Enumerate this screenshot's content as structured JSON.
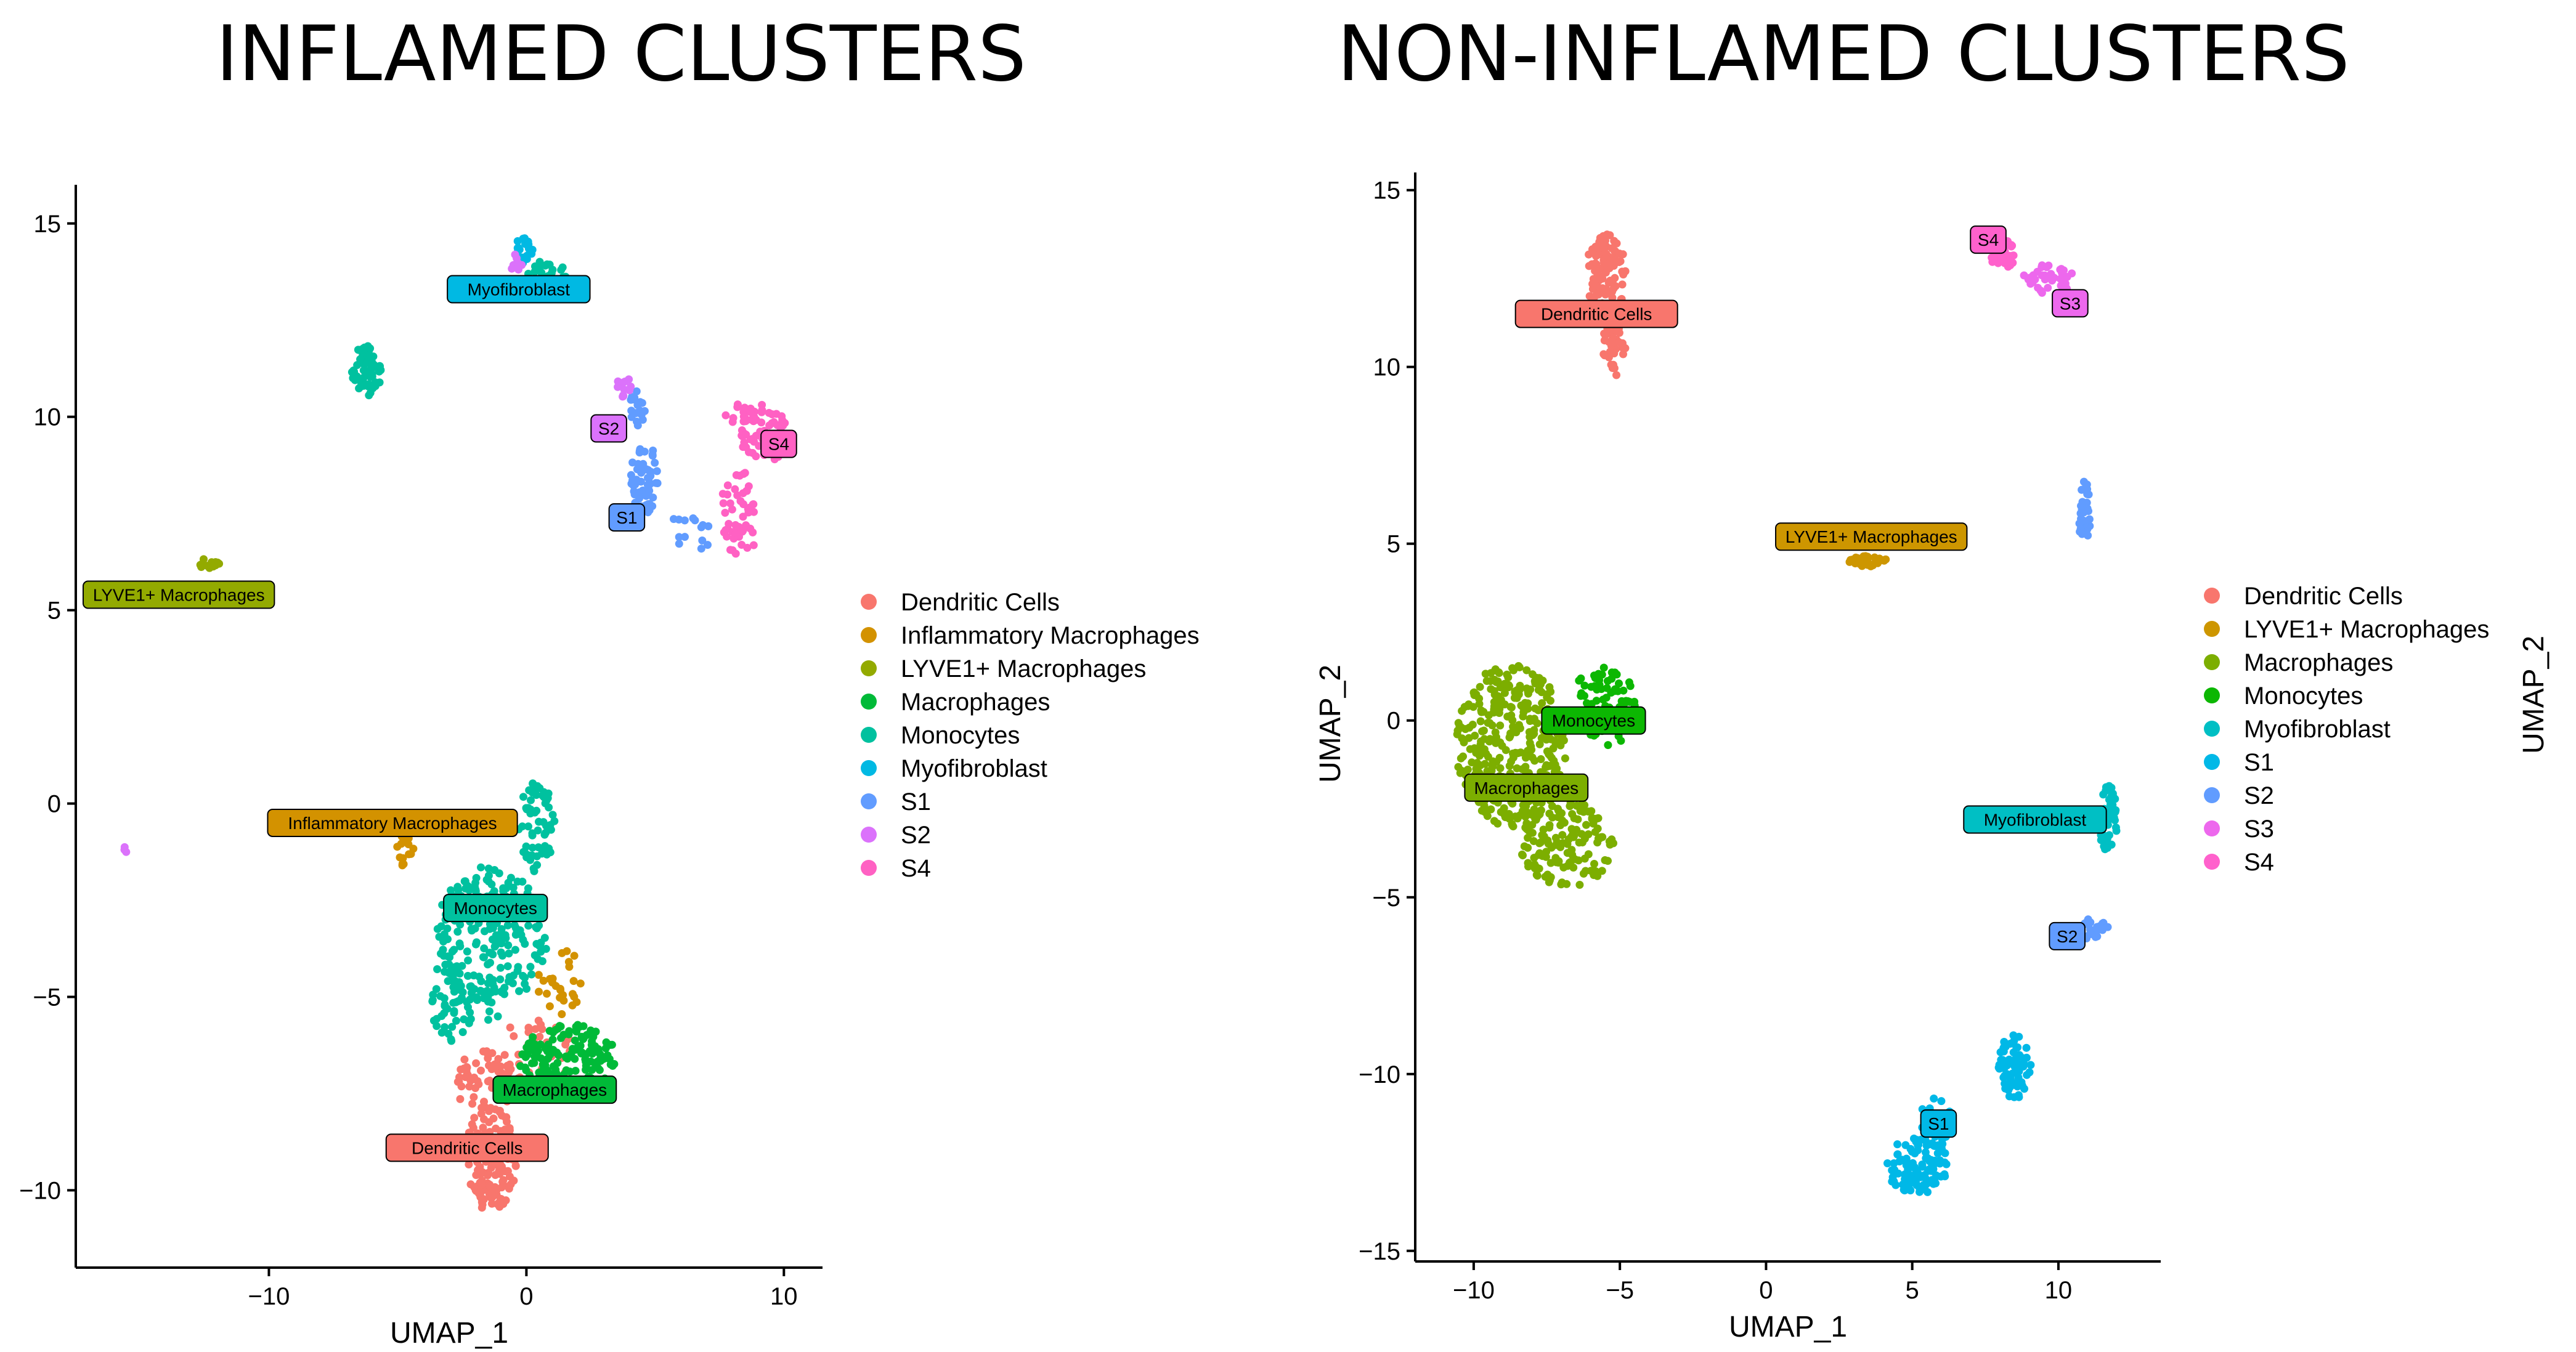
{
  "titles": {
    "left": "INFLAMED CLUSTERS",
    "right": "NON-INFLAMED CLUSTERS"
  },
  "chart_data": [
    {
      "type": "scatter",
      "title": "INFLAMED CLUSTERS",
      "xlabel": "UMAP_1",
      "ylabel": "",
      "xlim": [
        -17.5,
        11.5
      ],
      "ylim": [
        -12,
        16
      ],
      "xticks": [
        -10,
        0,
        10
      ],
      "yticks": [
        -10,
        -5,
        0,
        5,
        10,
        15
      ],
      "legend_position": "right",
      "legend": [
        {
          "name": "Dendritic Cells",
          "color": "#F8766D"
        },
        {
          "name": "Inflammatory Macrophages",
          "color": "#D39200"
        },
        {
          "name": "LYVE1+ Macrophages",
          "color": "#93AA00"
        },
        {
          "name": "Macrophages",
          "color": "#00BA38"
        },
        {
          "name": "Monocytes",
          "color": "#00C19F"
        },
        {
          "name": "Myofibroblast",
          "color": "#00B9E3"
        },
        {
          "name": "S1",
          "color": "#619CFF"
        },
        {
          "name": "S2",
          "color": "#DB72FB"
        },
        {
          "name": "S4",
          "color": "#FF61C3"
        }
      ],
      "cluster_labels": [
        {
          "text": "Myofibroblast",
          "x": -0.3,
          "y": 13.3,
          "color": "#00B9E3"
        },
        {
          "text": "S2",
          "x": 3.2,
          "y": 9.7,
          "color": "#DB72FB"
        },
        {
          "text": "S4",
          "x": 9.8,
          "y": 9.3,
          "color": "#FF61C3"
        },
        {
          "text": "S1",
          "x": 3.9,
          "y": 7.4,
          "color": "#619CFF"
        },
        {
          "text": "LYVE1+ Macrophages",
          "x": -13.5,
          "y": 5.4,
          "color": "#93AA00"
        },
        {
          "text": "Inflammatory Macrophages",
          "x": -5.2,
          "y": -0.5,
          "color": "#D39200"
        },
        {
          "text": "Monocytes",
          "x": -1.2,
          "y": -2.7,
          "color": "#00C19F"
        },
        {
          "text": "Macrophages",
          "x": 1.1,
          "y": -7.4,
          "color": "#00BA38"
        },
        {
          "text": "Dendritic Cells",
          "x": -2.3,
          "y": -8.9,
          "color": "#F8766D"
        }
      ],
      "series": [
        {
          "name": "Dendritic Cells",
          "color": "#F8766D",
          "blobs": [
            {
              "cx": -1.4,
              "cy": -9.2,
              "rx": 1.0,
              "ry": 1.4,
              "n": 150
            },
            {
              "cx": -1.6,
              "cy": -7.2,
              "rx": 1.2,
              "ry": 0.8,
              "n": 60
            },
            {
              "cx": 0.3,
              "cy": -6.6,
              "rx": 1.6,
              "ry": 1.0,
              "n": 40
            }
          ]
        },
        {
          "name": "Inflammatory Macrophages",
          "color": "#D39200",
          "blobs": [
            {
              "cx": -4.8,
              "cy": -1.2,
              "rx": 0.5,
              "ry": 0.4,
              "n": 14
            },
            {
              "cx": 1.3,
              "cy": -4.6,
              "rx": 0.9,
              "ry": 0.9,
              "n": 26
            }
          ]
        },
        {
          "name": "LYVE1+ Macrophages",
          "color": "#93AA00",
          "blobs": [
            {
              "cx": -12.3,
              "cy": 6.2,
              "rx": 0.4,
              "ry": 0.15,
              "n": 16
            }
          ]
        },
        {
          "name": "Macrophages",
          "color": "#00BA38",
          "blobs": [
            {
              "cx": 1.6,
              "cy": -6.6,
              "rx": 1.9,
              "ry": 0.9,
              "n": 150
            }
          ]
        },
        {
          "name": "Monocytes",
          "color": "#00C19F",
          "blobs": [
            {
              "cx": -1.4,
              "cy": -3.6,
              "rx": 2.2,
              "ry": 2.0,
              "n": 220
            },
            {
              "cx": 0.4,
              "cy": -0.6,
              "rx": 0.7,
              "ry": 1.2,
              "n": 60
            },
            {
              "cx": -2.8,
              "cy": -5.2,
              "rx": 0.9,
              "ry": 1.0,
              "n": 50
            },
            {
              "cx": -6.2,
              "cy": 11.2,
              "rx": 0.6,
              "ry": 0.65,
              "n": 70
            },
            {
              "cx": 0.8,
              "cy": 13.7,
              "rx": 0.8,
              "ry": 0.35,
              "n": 22
            }
          ]
        },
        {
          "name": "Myofibroblast",
          "color": "#00B9E3",
          "blobs": [
            {
              "cx": -0.1,
              "cy": 14.3,
              "rx": 0.35,
              "ry": 0.35,
              "n": 22
            }
          ]
        },
        {
          "name": "S1",
          "color": "#619CFF",
          "blobs": [
            {
              "cx": 4.6,
              "cy": 8.4,
              "rx": 0.55,
              "ry": 0.9,
              "n": 60
            },
            {
              "cx": 4.3,
              "cy": 10.2,
              "rx": 0.35,
              "ry": 0.5,
              "n": 18
            },
            {
              "cx": 6.3,
              "cy": 7.0,
              "rx": 1.0,
              "ry": 0.5,
              "n": 14
            }
          ]
        },
        {
          "name": "S2",
          "color": "#DB72FB",
          "blobs": [
            {
              "cx": 3.8,
              "cy": 10.8,
              "rx": 0.3,
              "ry": 0.3,
              "n": 12
            },
            {
              "cx": -0.4,
              "cy": 14.0,
              "rx": 0.25,
              "ry": 0.3,
              "n": 8
            },
            {
              "cx": -15.6,
              "cy": -1.2,
              "rx": 0.08,
              "ry": 0.12,
              "n": 3
            }
          ]
        },
        {
          "name": "S4",
          "color": "#FF61C3",
          "blobs": [
            {
              "cx": 8.3,
              "cy": 7.5,
              "rx": 0.8,
              "ry": 1.1,
              "n": 50
            },
            {
              "cx": 9.2,
              "cy": 9.6,
              "rx": 0.9,
              "ry": 0.9,
              "n": 60
            },
            {
              "cx": 8.2,
              "cy": 10.1,
              "rx": 0.5,
              "ry": 0.3,
              "n": 10
            }
          ]
        }
      ]
    },
    {
      "type": "scatter",
      "title": "NON-INFLAMED CLUSTERS",
      "xlabel": "UMAP_1",
      "ylabel": "UMAP_2",
      "xlim": [
        -12,
        13.5
      ],
      "ylim": [
        -15.3,
        15.5
      ],
      "xticks": [
        -10,
        -5,
        0,
        5,
        10
      ],
      "yticks": [
        -15,
        -10,
        -5,
        0,
        5,
        10,
        15
      ],
      "legend_position": "right",
      "legend": [
        {
          "name": "Dendritic Cells",
          "color": "#F8766D"
        },
        {
          "name": "LYVE1+ Macrophages",
          "color": "#CD9600"
        },
        {
          "name": "Macrophages",
          "color": "#7CAE00"
        },
        {
          "name": "Monocytes",
          "color": "#0CB702"
        },
        {
          "name": "Myofibroblast",
          "color": "#00BFC4"
        },
        {
          "name": "S1",
          "color": "#00B8E7"
        },
        {
          "name": "S2",
          "color": "#619CFF"
        },
        {
          "name": "S3",
          "color": "#ED68ED"
        },
        {
          "name": "S4",
          "color": "#FF61CC"
        }
      ],
      "cluster_labels": [
        {
          "text": "S4",
          "x": 7.6,
          "y": 13.6,
          "color": "#FF61CC"
        },
        {
          "text": "S3",
          "x": 10.4,
          "y": 11.8,
          "color": "#ED68ED"
        },
        {
          "text": "Dendritic Cells",
          "x": -5.8,
          "y": 11.5,
          "color": "#F8766D"
        },
        {
          "text": "LYVE1+ Macrophages",
          "x": 3.6,
          "y": 5.2,
          "color": "#CD9600"
        },
        {
          "text": "Monocytes",
          "x": -5.9,
          "y": 0.0,
          "color": "#0CB702"
        },
        {
          "text": "Macrophages",
          "x": -8.2,
          "y": -1.9,
          "color": "#7CAE00"
        },
        {
          "text": "Myofibroblast",
          "x": 9.2,
          "y": -2.8,
          "color": "#00BFC4"
        },
        {
          "text": "S2",
          "x": 10.3,
          "y": -6.1,
          "color": "#619CFF"
        },
        {
          "text": "S1",
          "x": 5.9,
          "y": -11.4,
          "color": "#00B8E7"
        }
      ],
      "series": [
        {
          "name": "Dendritic Cells",
          "color": "#F8766D",
          "blobs": [
            {
              "cx": -5.5,
              "cy": 12.6,
              "rx": 0.7,
              "ry": 1.2,
              "n": 110
            },
            {
              "cx": -5.2,
              "cy": 10.6,
              "rx": 0.4,
              "ry": 0.9,
              "n": 40
            }
          ]
        },
        {
          "name": "LYVE1+ Macrophages",
          "color": "#CD9600",
          "blobs": [
            {
              "cx": 3.5,
              "cy": 4.5,
              "rx": 0.65,
              "ry": 0.15,
              "n": 40
            }
          ]
        },
        {
          "name": "Macrophages",
          "color": "#7CAE00",
          "blobs": [
            {
              "cx": -8.7,
              "cy": -0.7,
              "rx": 1.9,
              "ry": 2.3,
              "n": 360
            },
            {
              "cx": -6.8,
              "cy": -3.5,
              "rx": 1.6,
              "ry": 1.2,
              "n": 140
            }
          ]
        },
        {
          "name": "Monocytes",
          "color": "#0CB702",
          "blobs": [
            {
              "cx": -5.5,
              "cy": 0.4,
              "rx": 1.2,
              "ry": 1.1,
              "n": 90
            }
          ]
        },
        {
          "name": "Myofibroblast",
          "color": "#00BFC4",
          "blobs": [
            {
              "cx": 11.7,
              "cy": -2.8,
              "rx": 0.3,
              "ry": 1.0,
              "n": 50
            }
          ]
        },
        {
          "name": "S1",
          "color": "#00B8E7",
          "blobs": [
            {
              "cx": 5.2,
              "cy": -12.6,
              "rx": 1.1,
              "ry": 0.8,
              "n": 110
            },
            {
              "cx": 5.8,
              "cy": -11.3,
              "rx": 0.5,
              "ry": 0.8,
              "n": 30
            },
            {
              "cx": 8.5,
              "cy": -9.8,
              "rx": 0.6,
              "ry": 0.9,
              "n": 70
            }
          ]
        },
        {
          "name": "S2",
          "color": "#619CFF",
          "blobs": [
            {
              "cx": 10.9,
              "cy": 5.8,
              "rx": 0.2,
              "ry": 1.0,
              "n": 40
            },
            {
              "cx": 11.2,
              "cy": -5.9,
              "rx": 0.5,
              "ry": 0.3,
              "n": 24
            }
          ]
        },
        {
          "name": "S3",
          "color": "#ED68ED",
          "blobs": [
            {
              "cx": 9.7,
              "cy": 12.5,
              "rx": 0.9,
              "ry": 0.45,
              "n": 40
            }
          ]
        },
        {
          "name": "S4",
          "color": "#FF61CC",
          "blobs": [
            {
              "cx": 8.1,
              "cy": 13.2,
              "rx": 0.45,
              "ry": 0.4,
              "n": 35
            }
          ]
        }
      ]
    }
  ]
}
